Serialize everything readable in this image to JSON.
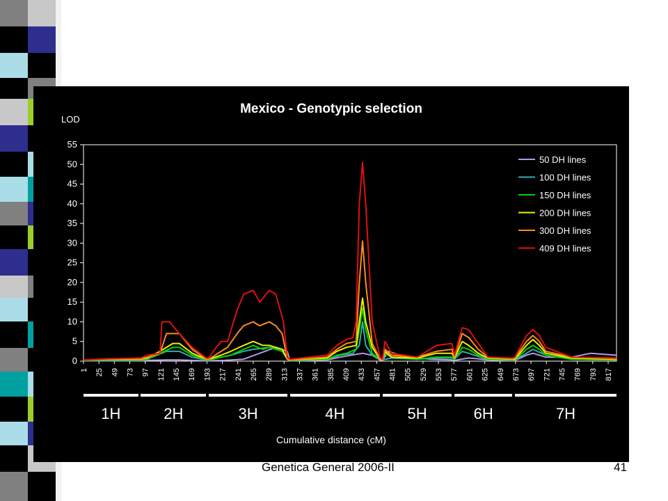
{
  "slide": {
    "footer": "Genetica General 2006-II",
    "page_number": "41",
    "strip_colors": [
      "#c8c8c8",
      "#000000",
      "#2e2e8f",
      "#9ccc2e",
      "#00a0a0",
      "#aadde8",
      "#808080",
      "#ffffff"
    ]
  },
  "chart_data": {
    "type": "line",
    "title": "Mexico - Genotypic selection",
    "ylabel": "LOD",
    "xlabel": "Cumulative distance (cM)",
    "ylim": [
      0,
      55
    ],
    "yticks": [
      0,
      5,
      10,
      15,
      20,
      25,
      30,
      35,
      40,
      45,
      50,
      55
    ],
    "xlim": [
      1,
      830
    ],
    "xticks": [
      1,
      25,
      49,
      73,
      97,
      121,
      145,
      169,
      193,
      217,
      241,
      265,
      289,
      313,
      337,
      361,
      385,
      409,
      433,
      457,
      481,
      505,
      529,
      553,
      577,
      601,
      625,
      649,
      673,
      697,
      721,
      745,
      769,
      793,
      817
    ],
    "grid": false,
    "legend_position": "top-right",
    "chromosomes": [
      {
        "label": "1H",
        "start": 1,
        "end": 86
      },
      {
        "label": "2H",
        "start": 90,
        "end": 192
      },
      {
        "label": "3H",
        "start": 196,
        "end": 318
      },
      {
        "label": "4H",
        "start": 322,
        "end": 462
      },
      {
        "label": "5H",
        "start": 466,
        "end": 574
      },
      {
        "label": "6H",
        "start": 578,
        "end": 668
      },
      {
        "label": "7H",
        "start": 672,
        "end": 830
      }
    ],
    "series": [
      {
        "name": "50 DH lines",
        "color": "#b49be6",
        "x": [
          1,
          40,
          86,
          90,
          100,
          130,
          150,
          170,
          192,
          196,
          220,
          250,
          275,
          300,
          318,
          322,
          380,
          400,
          420,
          435,
          450,
          462,
          466,
          475,
          500,
          540,
          574,
          578,
          600,
          615,
          630,
          668,
          672,
          690,
          700,
          720,
          760,
          790,
          830
        ],
        "y": [
          0.1,
          0.1,
          0.1,
          0.1,
          0.2,
          0.3,
          0.3,
          0.2,
          0.1,
          0.1,
          0.2,
          0.5,
          2.0,
          3.5,
          2.5,
          0.1,
          0.3,
          1.0,
          1.6,
          2.0,
          1.5,
          0.3,
          0.2,
          2.5,
          1.2,
          0.5,
          0.3,
          0.2,
          0.8,
          0.6,
          0.3,
          0.1,
          0.2,
          1.5,
          2.0,
          1.0,
          1.0,
          2.0,
          1.5
        ]
      },
      {
        "name": "100 DH lines",
        "color": "#2eb0b0",
        "x": [
          1,
          40,
          86,
          90,
          100,
          130,
          150,
          170,
          192,
          196,
          215,
          230,
          250,
          265,
          290,
          310,
          318,
          322,
          380,
          400,
          420,
          430,
          435,
          440,
          450,
          462,
          466,
          480,
          520,
          550,
          574,
          578,
          590,
          600,
          615,
          630,
          668,
          672,
          690,
          700,
          720,
          760,
          830
        ],
        "y": [
          0.2,
          0.3,
          0.3,
          0.3,
          0.5,
          2.5,
          2.5,
          1.0,
          0.3,
          0.3,
          1.0,
          1.5,
          2.5,
          3.0,
          3.5,
          3.0,
          0.5,
          0.2,
          0.5,
          1.5,
          2.0,
          4.0,
          10.0,
          4.0,
          1.5,
          0.5,
          0.3,
          0.8,
          0.5,
          0.8,
          0.8,
          0.5,
          2.5,
          2.0,
          1.2,
          0.5,
          0.3,
          0.3,
          2.0,
          3.0,
          1.5,
          0.5,
          0.3
        ]
      },
      {
        "name": "150 DH lines",
        "color": "#00d400",
        "x": [
          1,
          40,
          86,
          90,
          100,
          120,
          140,
          150,
          170,
          192,
          196,
          215,
          230,
          250,
          265,
          280,
          290,
          300,
          310,
          318,
          322,
          380,
          395,
          410,
          425,
          430,
          435,
          440,
          450,
          462,
          466,
          470,
          480,
          520,
          550,
          574,
          578,
          590,
          600,
          615,
          630,
          668,
          672,
          690,
          700,
          710,
          720,
          760,
          830
        ],
        "y": [
          0.2,
          0.3,
          0.3,
          0.3,
          0.5,
          2.0,
          3.5,
          3.5,
          1.5,
          0.3,
          0.3,
          1.0,
          1.5,
          3.0,
          4.0,
          3.0,
          3.5,
          3.0,
          2.5,
          0.5,
          0.2,
          0.5,
          1.5,
          2.0,
          3.0,
          8.0,
          13.5,
          8.0,
          2.0,
          0.5,
          0.3,
          2.0,
          1.0,
          0.5,
          1.0,
          1.0,
          0.5,
          3.5,
          3.0,
          1.5,
          0.5,
          0.3,
          0.3,
          3.0,
          4.0,
          3.0,
          1.5,
          0.5,
          0.3
        ]
      },
      {
        "name": "200 DH lines",
        "color": "#f0f000",
        "x": [
          1,
          40,
          86,
          90,
          100,
          120,
          140,
          150,
          170,
          192,
          196,
          215,
          230,
          250,
          265,
          280,
          290,
          300,
          310,
          318,
          322,
          380,
          395,
          410,
          425,
          430,
          435,
          440,
          450,
          462,
          466,
          470,
          480,
          520,
          550,
          574,
          578,
          590,
          600,
          615,
          630,
          668,
          672,
          690,
          700,
          710,
          720,
          760,
          830
        ],
        "y": [
          0.3,
          0.5,
          0.5,
          0.5,
          0.8,
          2.5,
          4.5,
          4.5,
          2.0,
          0.5,
          0.5,
          1.5,
          2.5,
          4.0,
          5.0,
          4.0,
          4.0,
          3.5,
          3.0,
          0.5,
          0.3,
          0.8,
          2.5,
          3.5,
          4.0,
          10.0,
          16.0,
          10.0,
          3.5,
          0.5,
          0.3,
          2.5,
          1.0,
          0.8,
          2.0,
          2.0,
          0.8,
          5.0,
          4.0,
          2.0,
          0.8,
          0.5,
          0.5,
          4.0,
          5.5,
          4.0,
          2.0,
          0.8,
          0.5
        ]
      },
      {
        "name": "300 DH lines",
        "color": "#ff8c1a",
        "x": [
          1,
          40,
          86,
          90,
          100,
          120,
          130,
          150,
          170,
          192,
          196,
          215,
          225,
          240,
          250,
          265,
          275,
          290,
          300,
          310,
          318,
          322,
          380,
          395,
          410,
          425,
          430,
          435,
          440,
          450,
          462,
          466,
          470,
          480,
          520,
          550,
          574,
          578,
          590,
          600,
          615,
          630,
          668,
          672,
          690,
          700,
          710,
          720,
          760,
          830
        ],
        "y": [
          0.3,
          0.6,
          0.6,
          0.6,
          1.0,
          2.0,
          7.0,
          7.0,
          3.0,
          0.5,
          0.5,
          2.5,
          3.5,
          7.0,
          9.0,
          10.0,
          9.0,
          10.0,
          9.0,
          7.0,
          0.6,
          0.3,
          1.0,
          3.0,
          4.5,
          5.0,
          20.0,
          30.5,
          20.0,
          4.5,
          0.6,
          0.3,
          3.0,
          1.5,
          1.0,
          2.5,
          3.0,
          1.0,
          7.0,
          6.0,
          3.0,
          1.0,
          0.6,
          0.8,
          5.0,
          6.5,
          5.0,
          2.5,
          1.0,
          0.6
        ]
      },
      {
        "name": "409 DH lines",
        "color": "#e01010",
        "x": [
          1,
          40,
          86,
          90,
          100,
          120,
          123,
          135,
          150,
          170,
          192,
          196,
          205,
          215,
          225,
          240,
          250,
          265,
          275,
          290,
          300,
          312,
          318,
          322,
          380,
          395,
          410,
          420,
          425,
          430,
          435,
          440,
          450,
          462,
          466,
          470,
          480,
          520,
          550,
          574,
          578,
          590,
          600,
          615,
          630,
          668,
          672,
          690,
          700,
          710,
          720,
          760,
          830
        ],
        "y": [
          0.3,
          0.6,
          0.8,
          0.8,
          1.5,
          2.0,
          10.0,
          10.0,
          7.0,
          3.5,
          0.8,
          0.8,
          3.0,
          5.0,
          5.0,
          13.0,
          17.0,
          18.0,
          15.0,
          18.0,
          17.0,
          10.0,
          1.0,
          0.5,
          1.5,
          4.0,
          5.5,
          6.0,
          10.0,
          40.0,
          50.5,
          40.0,
          10.0,
          1.0,
          0.5,
          5.0,
          2.0,
          1.0,
          4.0,
          4.5,
          1.5,
          8.5,
          8.0,
          4.5,
          1.0,
          0.8,
          1.0,
          6.5,
          8.0,
          6.5,
          3.5,
          1.0,
          0.8
        ]
      }
    ]
  }
}
